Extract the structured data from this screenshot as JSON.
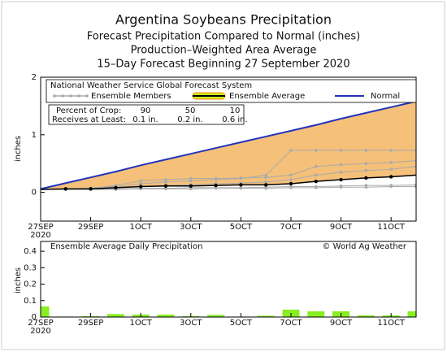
{
  "chart_data": [
    {
      "type": "line",
      "title": "Argentina Soybeans Precipitation",
      "subtitle": [
        "Forecast Precipitation Compared to Normal (inches)",
        "Production–Weighted Area Average",
        "15–Day Forecast Beginning 27 September 2020"
      ],
      "y_label": "inches",
      "source_label": "National Weather Service Global Forecast System",
      "x": [
        0,
        1,
        2,
        3,
        4,
        5,
        6,
        7,
        8,
        9,
        10,
        11,
        12,
        13,
        14,
        15
      ],
      "xlim": [
        0,
        15
      ],
      "xticks": [
        {
          "value": 0,
          "label": "27SEP"
        },
        {
          "value": 2,
          "label": "29SEP"
        },
        {
          "value": 4,
          "label": "1OCT"
        },
        {
          "value": 6,
          "label": "3OCT"
        },
        {
          "value": 8,
          "label": "5OCT"
        },
        {
          "value": 10,
          "label": "7OCT"
        },
        {
          "value": 12,
          "label": "9OCT"
        },
        {
          "value": 14,
          "label": "11OCT"
        }
      ],
      "year_label": "2020",
      "ylim": [
        -0.5,
        2
      ],
      "yticks": [
        0,
        1,
        2
      ],
      "area_color": "#f5c07a",
      "series": [
        {
          "name": "Normal",
          "color": "#2233bb",
          "values": [
            0.06,
            0.16,
            0.26,
            0.36,
            0.47,
            0.57,
            0.67,
            0.77,
            0.87,
            0.97,
            1.07,
            1.17,
            1.28,
            1.38,
            1.48,
            1.58
          ]
        },
        {
          "name": "Ensemble Average",
          "color": "#000000",
          "values": [
            0.05,
            0.06,
            0.06,
            0.08,
            0.1,
            0.11,
            0.11,
            0.12,
            0.13,
            0.13,
            0.15,
            0.19,
            0.22,
            0.25,
            0.27,
            0.3
          ]
        }
      ],
      "members": {
        "name": "Ensemble Members",
        "color": "#aaaaaa",
        "values": [
          [
            0.05,
            0.06,
            0.07,
            0.1,
            0.15,
            0.18,
            0.2,
            0.22,
            0.24,
            0.3,
            0.73,
            0.73,
            0.73,
            0.73,
            0.73,
            0.73
          ],
          [
            0.05,
            0.06,
            0.07,
            0.12,
            0.2,
            0.22,
            0.24,
            0.24,
            0.25,
            0.26,
            0.3,
            0.45,
            0.48,
            0.5,
            0.52,
            0.55
          ],
          [
            0.05,
            0.06,
            0.06,
            0.08,
            0.1,
            0.12,
            0.13,
            0.15,
            0.16,
            0.18,
            0.22,
            0.3,
            0.35,
            0.38,
            0.4,
            0.45
          ],
          [
            0.05,
            0.05,
            0.05,
            0.06,
            0.07,
            0.07,
            0.08,
            0.08,
            0.08,
            0.09,
            0.1,
            0.1,
            0.11,
            0.12,
            0.12,
            0.13
          ],
          [
            0.05,
            0.05,
            0.05,
            0.05,
            0.06,
            0.06,
            0.06,
            0.07,
            0.07,
            0.07,
            0.08,
            0.08,
            0.09,
            0.09,
            0.1,
            0.1
          ]
        ]
      },
      "crop_table": {
        "row_labels": [
          "Percent of Crop:",
          "Receives at Least:"
        ],
        "percents": [
          90,
          50,
          10
        ],
        "amounts": [
          "0.1 in.",
          "0.2 in.",
          "0.6 in."
        ]
      }
    },
    {
      "type": "bar",
      "title": "Ensemble Average Daily Precipitation",
      "source": "© World Ag Weather",
      "y_label": "inches",
      "x": [
        0,
        1,
        2,
        3,
        4,
        5,
        6,
        7,
        8,
        9,
        10,
        11,
        12,
        13,
        14,
        15
      ],
      "xlim": [
        0,
        15
      ],
      "xticks": [
        {
          "value": 0,
          "label": "27SEP"
        },
        {
          "value": 2,
          "label": "29SEP"
        },
        {
          "value": 4,
          "label": "1OCT"
        },
        {
          "value": 6,
          "label": "3OCT"
        },
        {
          "value": 8,
          "label": "5OCT"
        },
        {
          "value": 10,
          "label": "7OCT"
        },
        {
          "value": 12,
          "label": "9OCT"
        },
        {
          "value": 14,
          "label": "11OCT"
        }
      ],
      "year_label": "2020",
      "ylim": [
        0,
        0.46
      ],
      "yticks": [
        0,
        0.1,
        0.2,
        0.3,
        0.4
      ],
      "color": "#88ee22",
      "values": [
        0.065,
        0.003,
        0.005,
        0.018,
        0.015,
        0.015,
        0.005,
        0.013,
        0.003,
        0.008,
        0.045,
        0.035,
        0.035,
        0.01,
        0.01,
        0.035
      ]
    }
  ]
}
